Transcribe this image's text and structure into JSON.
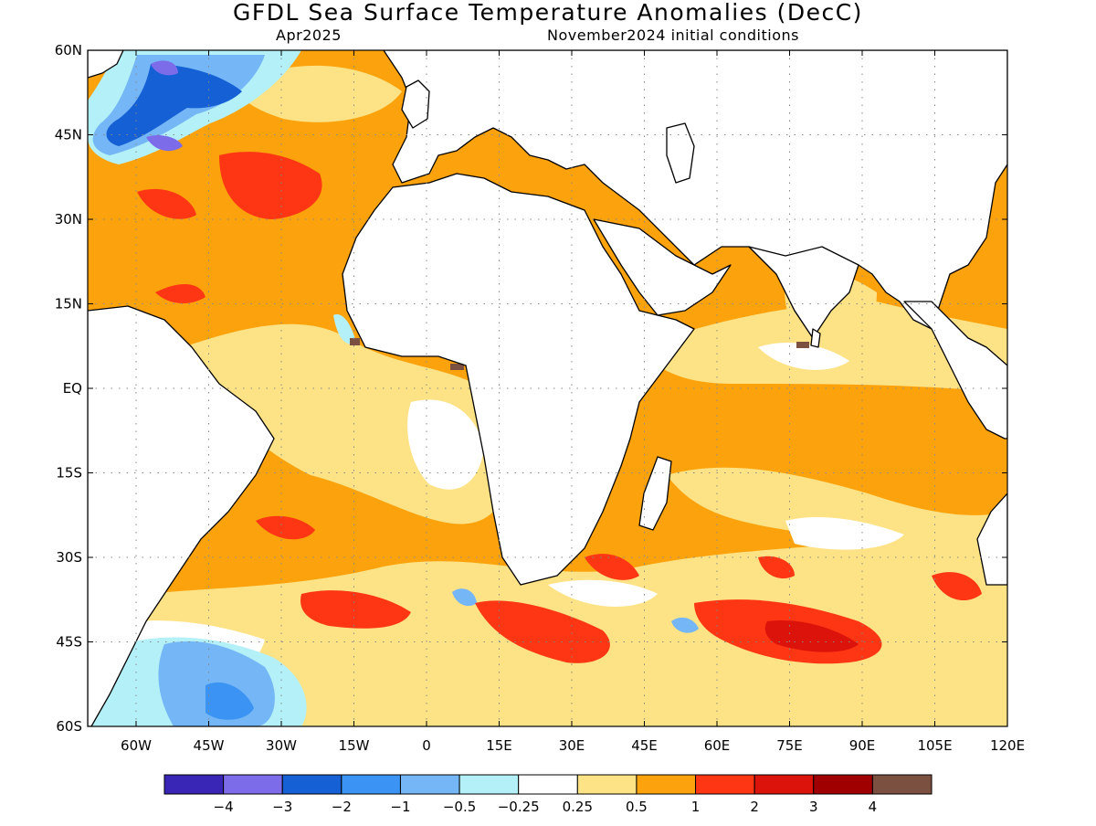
{
  "title": "GFDL Sea Surface Temperature Anomalies (DecC)",
  "subtitle_left": "Apr2025",
  "subtitle_right": "November2024 initial conditions",
  "map": {
    "lon_range": [
      -70,
      120
    ],
    "lat_range": [
      -60,
      60
    ],
    "lon_ticks": [
      {
        "v": -60,
        "label": "60W"
      },
      {
        "v": -45,
        "label": "45W"
      },
      {
        "v": -30,
        "label": "30W"
      },
      {
        "v": -15,
        "label": "15W"
      },
      {
        "v": 0,
        "label": "0"
      },
      {
        "v": 15,
        "label": "15E"
      },
      {
        "v": 30,
        "label": "30E"
      },
      {
        "v": 45,
        "label": "45E"
      },
      {
        "v": 60,
        "label": "60E"
      },
      {
        "v": 75,
        "label": "75E"
      },
      {
        "v": 90,
        "label": "90E"
      },
      {
        "v": 105,
        "label": "105E"
      },
      {
        "v": 120,
        "label": "120E"
      }
    ],
    "lat_ticks": [
      {
        "v": 60,
        "label": "60N"
      },
      {
        "v": 45,
        "label": "45N"
      },
      {
        "v": 30,
        "label": "30N"
      },
      {
        "v": 15,
        "label": "15N"
      },
      {
        "v": 0,
        "label": "EQ"
      },
      {
        "v": -15,
        "label": "15S"
      },
      {
        "v": -30,
        "label": "30S"
      },
      {
        "v": -45,
        "label": "45S"
      },
      {
        "v": -60,
        "label": "60S"
      }
    ]
  },
  "colorbar": {
    "colors": [
      "#3a26b6",
      "#7c6cea",
      "#1560d4",
      "#3b93f3",
      "#74b6f6",
      "#b3f0f7",
      "#ffffff",
      "#fde386",
      "#fba20d",
      "#fe3613",
      "#dc130b",
      "#a00000",
      "#7b5040"
    ],
    "labels": [
      "−4",
      "−3",
      "−2",
      "−1",
      "−0.5",
      "−0.25",
      "0.25",
      "0.5",
      "1",
      "2",
      "3",
      "4"
    ]
  }
}
